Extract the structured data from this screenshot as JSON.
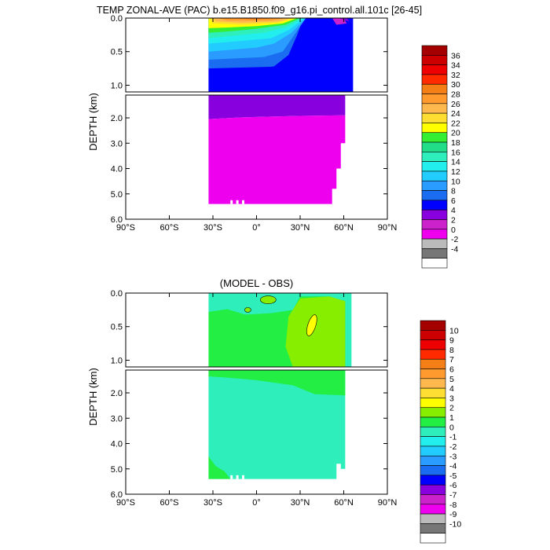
{
  "title": "TEMP ZONAL-AVE (PAC) b.e15.B1850.f09_g16.pi_control.all.101c [26-45]",
  "chart_data": [
    {
      "type": "heatmap",
      "panel": "temperature",
      "title": "TEMP ZONAL-AVE (PAC) b.e15.B1850.f09_g16.pi_control.all.101c [26-45]",
      "ylabel": "DEPTH (km)",
      "xlim": [
        -90,
        90
      ],
      "ylim_upper_km": [
        0,
        1.1
      ],
      "ylim_lower_km": [
        1.1,
        6.0
      ],
      "x_ticks": [
        -90,
        -60,
        -30,
        0,
        30,
        60,
        90
      ],
      "x_tick_labels": [
        "90°S",
        "60°S",
        "30°S",
        "0°",
        "30°N",
        "60°N",
        "90°N"
      ],
      "y_ticks_upper": [
        0.0,
        0.5,
        1.0
      ],
      "y_tick_labels_upper": [
        "0.0",
        "0.5",
        "1.0"
      ],
      "y_ticks_lower": [
        2.0,
        3.0,
        4.0,
        5.0,
        6.0
      ],
      "y_tick_labels_lower": [
        "2.0",
        "3.0",
        "4.0",
        "5.0",
        "6.0"
      ],
      "colorbar": {
        "labels": [
          "36",
          "34",
          "32",
          "30",
          "28",
          "26",
          "24",
          "22",
          "20",
          "18",
          "16",
          "14",
          "12",
          "10",
          "8",
          "6",
          "4",
          "2",
          "0",
          "-2",
          "-4"
        ],
        "colors": [
          "#a50000",
          "#cc0000",
          "#ee0000",
          "#ff2a00",
          "#f47f16",
          "#ff9a2e",
          "#ffb84d",
          "#ffde33",
          "#ffff00",
          "#33ee33",
          "#22dd88",
          "#2eeebb",
          "#22eeee",
          "#22ccff",
          "#2a9cff",
          "#1a6cf0",
          "#0000ff",
          "#8800dd",
          "#cc22cc",
          "#ee00ee",
          "#bbbbbb",
          "#777777",
          "#ffffff"
        ]
      }
    },
    {
      "type": "heatmap",
      "panel": "difference",
      "title": "(MODEL - OBS)",
      "ylabel": "DEPTH (km)",
      "xlim": [
        -90,
        90
      ],
      "ylim_upper_km": [
        0,
        1.1
      ],
      "ylim_lower_km": [
        1.1,
        6.0
      ],
      "x_ticks": [
        -90,
        -60,
        -30,
        0,
        30,
        60,
        90
      ],
      "x_tick_labels": [
        "90°S",
        "60°S",
        "30°S",
        "0°",
        "30°N",
        "60°N",
        "90°N"
      ],
      "y_ticks_upper": [
        0.0,
        0.5,
        1.0
      ],
      "y_tick_labels_upper": [
        "0.0",
        "0.5",
        "1.0"
      ],
      "y_ticks_lower": [
        2.0,
        3.0,
        4.0,
        5.0,
        6.0
      ],
      "y_tick_labels_lower": [
        "2.0",
        "3.0",
        "4.0",
        "5.0",
        "6.0"
      ],
      "colorbar": {
        "labels": [
          "10",
          "9",
          "8",
          "7",
          "6",
          "5",
          "4",
          "3",
          "2",
          "1",
          "0",
          "-1",
          "-2",
          "-3",
          "-4",
          "-5",
          "-6",
          "-7",
          "-8",
          "-9",
          "-10"
        ],
        "colors": [
          "#a50000",
          "#cc0000",
          "#ee0000",
          "#ff2a00",
          "#f47f16",
          "#ff9a2e",
          "#ffb84d",
          "#ffde33",
          "#ffff00",
          "#88ee00",
          "#22ee44",
          "#2eeebb",
          "#22eeee",
          "#22ccff",
          "#2a9cff",
          "#1a6cf0",
          "#0000ff",
          "#8800dd",
          "#cc22cc",
          "#ee00ee",
          "#bbbbbb",
          "#777777",
          "#ffffff"
        ]
      }
    }
  ]
}
